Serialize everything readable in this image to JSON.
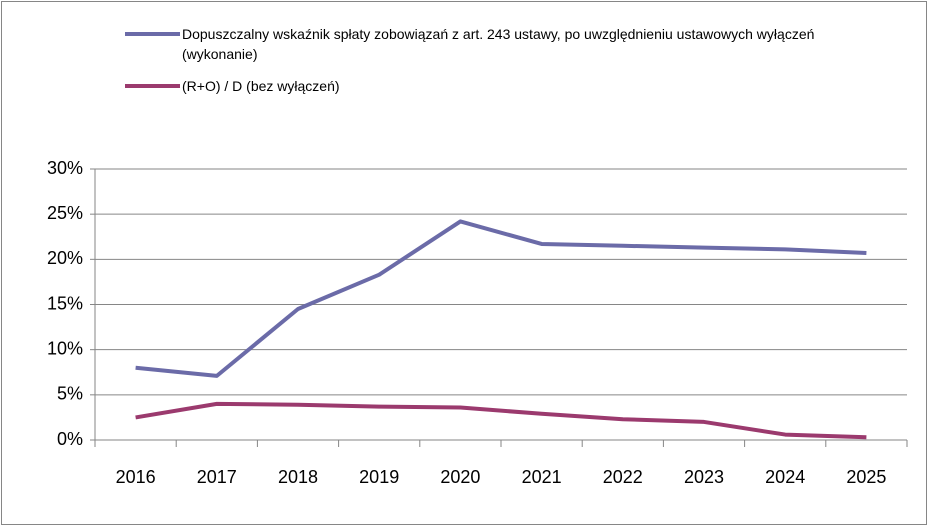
{
  "chart_data": {
    "type": "line",
    "categories": [
      "2016",
      "2017",
      "2018",
      "2019",
      "2020",
      "2021",
      "2022",
      "2023",
      "2024",
      "2025"
    ],
    "series": [
      {
        "name": "Dopuszczalny wskaźnik spłaty zobowiązań z art. 243 ustawy, po uwzględnieniu ustawowych wyłączeń (wykonanie)",
        "color": "#6b6ba8",
        "values": [
          8.0,
          7.1,
          14.5,
          18.3,
          24.2,
          21.7,
          21.5,
          21.3,
          21.1,
          20.7
        ]
      },
      {
        "name": "(R+O) / D (bez wyłączeń)",
        "color": "#9b3a6e",
        "values": [
          2.5,
          4.0,
          3.9,
          3.7,
          3.6,
          2.9,
          2.3,
          2.0,
          0.6,
          0.3
        ]
      }
    ],
    "ylim": [
      0,
      30
    ],
    "yticks": [
      {
        "value": 0,
        "label": "0%"
      },
      {
        "value": 5,
        "label": "5%"
      },
      {
        "value": 10,
        "label": "10%"
      },
      {
        "value": 15,
        "label": "15%"
      },
      {
        "value": 20,
        "label": "20%"
      },
      {
        "value": 25,
        "label": "25%"
      },
      {
        "value": 30,
        "label": "30%"
      }
    ],
    "grid": true,
    "legend": "top"
  }
}
